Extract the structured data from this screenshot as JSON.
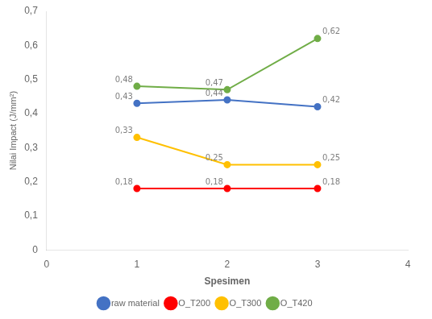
{
  "chart_data": {
    "type": "line",
    "xlabel": "Spesimen",
    "ylabel": "Nilai Impact (J/mm²)",
    "x": [
      1,
      2,
      3
    ],
    "series": [
      {
        "name": "raw material",
        "color": "#4472C4",
        "marker": "circle",
        "values": [
          0.43,
          0.44,
          0.42
        ],
        "value_labels": [
          "0,43",
          "0,44",
          "0,42"
        ]
      },
      {
        "name": "O_T200",
        "color": "#FF0000",
        "marker": "circle",
        "values": [
          0.18,
          0.18,
          0.18
        ],
        "value_labels": [
          "0,18",
          "0,18",
          "0,18"
        ]
      },
      {
        "name": "O_T300",
        "color": "#FFC000",
        "marker": "circle",
        "values": [
          0.33,
          0.25,
          0.25
        ],
        "value_labels": [
          "0,33",
          "0,25",
          "0,25"
        ]
      },
      {
        "name": "O_T420",
        "color": "#70AD47",
        "marker": "circle",
        "values": [
          0.48,
          0.47,
          0.62
        ],
        "value_labels": [
          "0,48",
          "0,47",
          "0,62"
        ]
      }
    ],
    "xlim": [
      0,
      4
    ],
    "xticks": [
      0,
      1,
      2,
      3,
      4
    ],
    "ylim": [
      0,
      0.7
    ],
    "yticks": [
      0,
      {
        "value": 0.1,
        "label": "0,1"
      },
      {
        "value": 0.2,
        "label": "0,2"
      },
      {
        "value": 0.3,
        "label": "0,3"
      },
      {
        "value": 0.4,
        "label": "0,4"
      },
      {
        "value": 0.5,
        "label": "0,5"
      },
      {
        "value": 0.6,
        "label": "0,6"
      },
      {
        "value": 0.7,
        "label": "0,7"
      }
    ],
    "grid": false,
    "legend": "bottom",
    "data_labels": true
  }
}
